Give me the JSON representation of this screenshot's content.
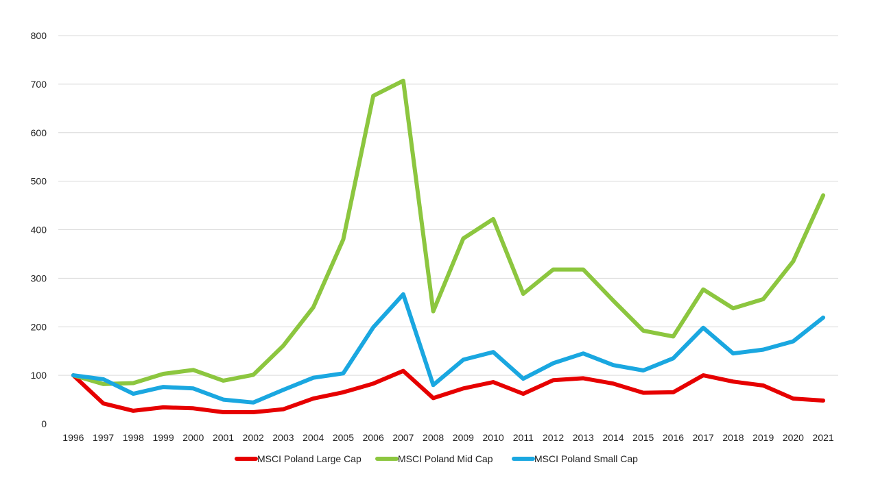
{
  "chart_data": {
    "type": "line",
    "title": "",
    "xlabel": "",
    "ylabel": "",
    "ylim": [
      0,
      800
    ],
    "yticks": [
      0,
      100,
      200,
      300,
      400,
      500,
      600,
      700,
      800
    ],
    "grid": true,
    "legend_position": "bottom",
    "x": [
      "1996",
      "1997",
      "1998",
      "1999",
      "2000",
      "2001",
      "2002",
      "2003",
      "2004",
      "2005",
      "2006",
      "2007",
      "2008",
      "2009",
      "2010",
      "2011",
      "2012",
      "2013",
      "2014",
      "2015",
      "2016",
      "2017",
      "2018",
      "2019",
      "2020",
      "2021"
    ],
    "series": [
      {
        "name": "MSCI Poland Large Cap",
        "color": "#e60000",
        "values": [
          100,
          42,
          27,
          34,
          32,
          24,
          24,
          30,
          52,
          65,
          83,
          109,
          53,
          73,
          86,
          62,
          90,
          94,
          83,
          64,
          65,
          100,
          87,
          79,
          52,
          48
        ]
      },
      {
        "name": "MSCI Poland Mid Cap",
        "color": "#8cc63f",
        "values": [
          100,
          82,
          84,
          103,
          111,
          89,
          101,
          161,
          240,
          380,
          676,
          707,
          232,
          382,
          422,
          268,
          318,
          318,
          254,
          192,
          180,
          277,
          238,
          257,
          335,
          471
        ]
      },
      {
        "name": "MSCI Poland Small Cap",
        "color": "#1aa7e0",
        "values": [
          100,
          92,
          62,
          76,
          73,
          50,
          44,
          70,
          95,
          104,
          199,
          267,
          80,
          132,
          148,
          93,
          125,
          145,
          121,
          110,
          135,
          198,
          145,
          153,
          170,
          219
        ]
      }
    ]
  }
}
